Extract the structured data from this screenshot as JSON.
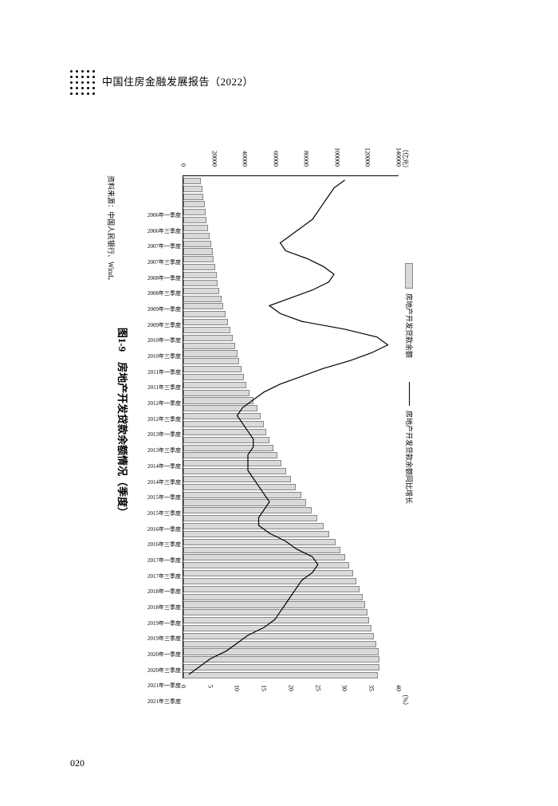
{
  "header": {
    "title": "中国住房金融发展报告（2022）"
  },
  "page_number": "020",
  "chart": {
    "type": "bar+line",
    "legend": {
      "bar_label": "房地产开发贷款余额",
      "line_label": "房地产开发贷款余额同比增长"
    },
    "left_axis": {
      "unit": "（亿元）",
      "min": 0,
      "max": 140000,
      "step": 20000,
      "fontsize": 8
    },
    "right_axis": {
      "unit": "（%）",
      "min": 0,
      "max": 40,
      "step": 5,
      "fontsize": 8
    },
    "bar_color": "#d9d9d9",
    "bar_border": "#888888",
    "line_color": "#000000",
    "line_width": 1.2,
    "background_color": "#ffffff",
    "bar_width_ratio": 0.62,
    "categories": [
      "2006年一季度",
      "2006年三季度",
      "2007年一季度",
      "2007年三季度",
      "2008年一季度",
      "2008年三季度",
      "2009年一季度",
      "2009年三季度",
      "2010年一季度",
      "2010年三季度",
      "2011年一季度",
      "2011年三季度",
      "2012年一季度",
      "2012年三季度",
      "2013年一季度",
      "2013年三季度",
      "2014年一季度",
      "2014年三季度",
      "2015年一季度",
      "2015年三季度",
      "2016年一季度",
      "2016年三季度",
      "2017年一季度",
      "2017年三季度",
      "2018年一季度",
      "2018年三季度",
      "2019年一季度",
      "2019年三季度",
      "2020年一季度",
      "2020年三季度",
      "2021年一季度",
      "2021年三季度"
    ],
    "bar_values_full": [
      10500,
      11200,
      12000,
      12800,
      13500,
      14200,
      15000,
      16000,
      17200,
      18000,
      18800,
      19500,
      20500,
      21500,
      22500,
      23800,
      25000,
      26500,
      28000,
      29500,
      31000,
      32500,
      34000,
      35500,
      37000,
      38500,
      40000,
      42000,
      44500,
      47000,
      49500,
      51500,
      53000,
      55000,
      57500,
      60000,
      63000,
      66000,
      69000,
      72000,
      75500,
      79000,
      82500,
      86000,
      90000,
      94000,
      98000,
      101000,
      104000,
      107000,
      109500,
      111500,
      113500,
      115500,
      117000,
      118500,
      120000,
      121500,
      123000,
      124500,
      126000,
      126500,
      126500,
      125500
    ],
    "line_values_full": [
      30,
      28,
      27,
      26,
      25,
      24,
      22,
      20,
      18,
      19,
      23,
      26,
      28,
      27,
      24,
      20,
      16,
      18,
      22,
      30,
      36,
      38,
      35,
      31,
      26,
      22,
      18,
      15,
      13,
      11,
      10,
      11,
      12,
      13,
      13,
      12,
      12,
      12,
      13,
      14,
      15,
      16,
      15,
      14,
      14,
      16,
      19,
      21,
      24,
      25,
      24,
      22,
      21,
      20,
      19,
      18,
      17,
      15,
      12,
      10,
      8,
      5,
      3,
      1
    ]
  },
  "caption": "图1-9　房地产开发贷款余额情况（季度）",
  "source": "资料来源：中国人民银行、Wind。"
}
